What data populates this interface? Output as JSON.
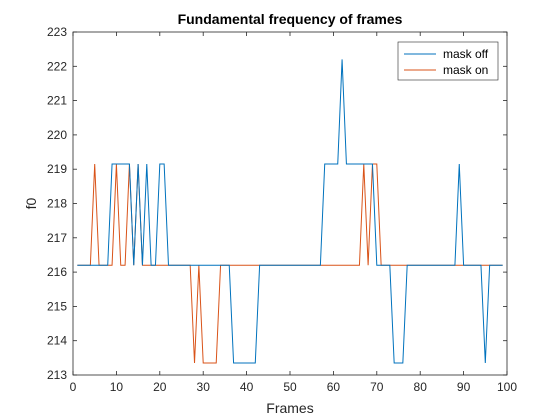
{
  "chart_data": {
    "type": "line",
    "title": "Fundamental frequency of frames",
    "xlabel": "Frames",
    "ylabel": "f0",
    "xlim": [
      0,
      100
    ],
    "ylim": [
      213,
      223
    ],
    "xticks": [
      0,
      10,
      20,
      30,
      40,
      50,
      60,
      70,
      80,
      90,
      100
    ],
    "yticks": [
      213,
      214,
      215,
      216,
      217,
      218,
      219,
      220,
      221,
      222,
      223
    ],
    "grid": false,
    "legend": "top-right",
    "x": [
      1,
      2,
      3,
      4,
      5,
      6,
      7,
      8,
      9,
      10,
      11,
      12,
      13,
      14,
      15,
      16,
      17,
      18,
      19,
      20,
      21,
      22,
      23,
      24,
      25,
      26,
      27,
      28,
      29,
      30,
      31,
      32,
      33,
      34,
      35,
      36,
      37,
      38,
      39,
      40,
      41,
      42,
      43,
      44,
      45,
      46,
      47,
      48,
      49,
      50,
      51,
      52,
      53,
      54,
      55,
      56,
      57,
      58,
      59,
      60,
      61,
      62,
      63,
      64,
      65,
      66,
      67,
      68,
      69,
      70,
      71,
      72,
      73,
      74,
      75,
      76,
      77,
      78,
      79,
      80,
      81,
      82,
      83,
      84,
      85,
      86,
      87,
      88,
      89,
      90,
      91,
      92,
      93,
      94,
      95,
      96,
      97,
      98,
      99
    ],
    "series": [
      {
        "name": "mask off",
        "color": "#0072BD",
        "values": [
          216.2,
          216.2,
          216.2,
          216.2,
          216.2,
          216.2,
          216.2,
          216.2,
          219.15,
          219.15,
          219.15,
          219.15,
          219.15,
          216.2,
          219.15,
          216.2,
          219.15,
          216.2,
          216.2,
          219.15,
          219.15,
          216.2,
          216.2,
          216.2,
          216.2,
          216.2,
          216.2,
          216.2,
          216.2,
          216.2,
          216.2,
          216.2,
          216.2,
          216.2,
          216.2,
          216.2,
          213.35,
          213.35,
          213.35,
          213.35,
          213.35,
          213.35,
          216.2,
          216.2,
          216.2,
          216.2,
          216.2,
          216.2,
          216.2,
          216.2,
          216.2,
          216.2,
          216.2,
          216.2,
          216.2,
          216.2,
          216.2,
          219.15,
          219.15,
          219.15,
          219.15,
          222.2,
          219.15,
          219.15,
          219.15,
          219.15,
          219.15,
          219.15,
          219.15,
          216.2,
          216.2,
          216.2,
          216.2,
          213.35,
          213.35,
          213.35,
          216.2,
          216.2,
          216.2,
          216.2,
          216.2,
          216.2,
          216.2,
          216.2,
          216.2,
          216.2,
          216.2,
          216.2,
          219.15,
          216.2,
          216.2,
          216.2,
          216.2,
          216.2,
          213.35,
          216.2,
          216.2,
          216.2,
          216.2
        ]
      },
      {
        "name": "mask on",
        "color": "#D95319",
        "values": [
          216.2,
          216.2,
          216.2,
          216.2,
          219.15,
          216.2,
          216.2,
          216.2,
          216.2,
          219.15,
          216.2,
          216.2,
          219.15,
          216.2,
          219.15,
          216.2,
          216.2,
          216.2,
          216.2,
          216.2,
          216.2,
          216.2,
          216.2,
          216.2,
          216.2,
          216.2,
          216.2,
          213.35,
          216.2,
          213.35,
          213.35,
          213.35,
          213.35,
          216.2,
          216.2,
          216.2,
          216.2,
          216.2,
          216.2,
          216.2,
          216.2,
          216.2,
          216.2,
          216.2,
          216.2,
          216.2,
          216.2,
          216.2,
          216.2,
          216.2,
          216.2,
          216.2,
          216.2,
          216.2,
          216.2,
          216.2,
          216.2,
          216.2,
          216.2,
          216.2,
          216.2,
          216.2,
          216.2,
          216.2,
          216.2,
          216.2,
          219.15,
          216.2,
          219.15,
          219.15,
          216.2,
          216.2,
          216.2,
          216.2,
          216.2,
          216.2,
          216.2,
          216.2,
          216.2,
          216.2,
          216.2,
          216.2,
          216.2,
          216.2,
          216.2,
          216.2,
          216.2,
          216.2,
          216.2,
          216.2,
          216.2,
          216.2,
          216.2,
          216.2,
          216.2,
          216.2,
          216.2,
          216.2,
          216.2
        ]
      }
    ]
  }
}
